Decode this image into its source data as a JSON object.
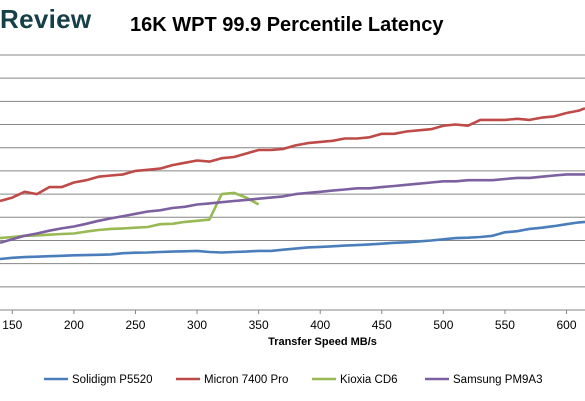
{
  "header": {
    "logo_text": "Review",
    "title": "16K WPT 99.9 Percentile Latency"
  },
  "chart_data": {
    "type": "line",
    "title": "16K WPT 99.9 Percentile Latency",
    "xlabel": "Transfer Speed MB/s",
    "ylabel": "",
    "xlim": [
      140,
      615
    ],
    "ylim": [
      0,
      11
    ],
    "x_ticks": [
      "150",
      "200",
      "250",
      "300",
      "350",
      "400",
      "450",
      "500",
      "550",
      "600"
    ],
    "grid": "horizontal",
    "legend_position": "bottom",
    "series": [
      {
        "name": "Solidigm P5520",
        "color": "#4a7ebb",
        "x": [
          140,
          150,
          160,
          170,
          180,
          190,
          200,
          210,
          220,
          230,
          240,
          250,
          260,
          270,
          280,
          290,
          300,
          310,
          320,
          330,
          340,
          350,
          360,
          370,
          380,
          390,
          400,
          410,
          420,
          430,
          440,
          450,
          460,
          470,
          480,
          490,
          500,
          510,
          520,
          530,
          540,
          550,
          560,
          570,
          580,
          590,
          600,
          610,
          615
        ],
        "y": [
          2.2,
          2.25,
          2.28,
          2.3,
          2.32,
          2.34,
          2.36,
          2.37,
          2.38,
          2.4,
          2.45,
          2.47,
          2.48,
          2.5,
          2.52,
          2.53,
          2.55,
          2.5,
          2.48,
          2.5,
          2.52,
          2.55,
          2.55,
          2.6,
          2.65,
          2.7,
          2.72,
          2.75,
          2.78,
          2.8,
          2.83,
          2.86,
          2.9,
          2.92,
          2.96,
          3.0,
          3.05,
          3.1,
          3.12,
          3.15,
          3.2,
          3.35,
          3.4,
          3.5,
          3.55,
          3.62,
          3.7,
          3.78,
          3.8
        ]
      },
      {
        "name": "Micron 7400 Pro",
        "color": "#be4b48",
        "x": [
          140,
          150,
          160,
          170,
          180,
          190,
          200,
          210,
          220,
          230,
          240,
          250,
          260,
          270,
          280,
          290,
          300,
          310,
          320,
          330,
          340,
          350,
          360,
          370,
          380,
          390,
          400,
          410,
          420,
          430,
          440,
          450,
          460,
          470,
          480,
          490,
          500,
          510,
          520,
          530,
          540,
          550,
          560,
          570,
          580,
          590,
          600,
          610,
          615
        ],
        "y": [
          4.7,
          4.85,
          5.1,
          5.0,
          5.3,
          5.3,
          5.5,
          5.6,
          5.75,
          5.8,
          5.85,
          6.0,
          6.05,
          6.1,
          6.25,
          6.35,
          6.45,
          6.4,
          6.55,
          6.6,
          6.75,
          6.9,
          6.9,
          6.95,
          7.1,
          7.2,
          7.25,
          7.3,
          7.4,
          7.4,
          7.45,
          7.6,
          7.6,
          7.7,
          7.75,
          7.8,
          7.95,
          8.0,
          7.95,
          8.2,
          8.2,
          8.2,
          8.25,
          8.2,
          8.3,
          8.35,
          8.5,
          8.6,
          8.7
        ]
      },
      {
        "name": "Kioxia CD6",
        "color": "#98b954",
        "x": [
          140,
          150,
          160,
          170,
          180,
          190,
          200,
          210,
          220,
          230,
          240,
          250,
          260,
          270,
          280,
          290,
          300,
          310,
          320,
          330,
          340,
          350
        ],
        "y": [
          3.1,
          3.15,
          3.2,
          3.22,
          3.25,
          3.28,
          3.3,
          3.38,
          3.45,
          3.5,
          3.52,
          3.55,
          3.58,
          3.7,
          3.72,
          3.8,
          3.85,
          3.9,
          5.0,
          5.05,
          4.85,
          4.55
        ]
      },
      {
        "name": "Samsung PM9A3",
        "color": "#7d60a0",
        "x": [
          140,
          150,
          160,
          170,
          180,
          190,
          200,
          210,
          220,
          230,
          240,
          250,
          260,
          270,
          280,
          290,
          300,
          310,
          320,
          330,
          340,
          350,
          360,
          370,
          380,
          390,
          400,
          410,
          420,
          430,
          440,
          450,
          460,
          470,
          480,
          490,
          500,
          510,
          520,
          530,
          540,
          550,
          560,
          570,
          580,
          590,
          600,
          610,
          615
        ],
        "y": [
          2.9,
          3.05,
          3.2,
          3.3,
          3.42,
          3.52,
          3.6,
          3.72,
          3.85,
          3.95,
          4.05,
          4.15,
          4.25,
          4.3,
          4.4,
          4.45,
          4.55,
          4.6,
          4.65,
          4.7,
          4.75,
          4.8,
          4.85,
          4.9,
          5.0,
          5.05,
          5.1,
          5.15,
          5.2,
          5.25,
          5.25,
          5.3,
          5.35,
          5.4,
          5.45,
          5.5,
          5.55,
          5.55,
          5.6,
          5.6,
          5.6,
          5.65,
          5.7,
          5.7,
          5.75,
          5.8,
          5.85,
          5.85,
          5.85
        ]
      }
    ]
  }
}
